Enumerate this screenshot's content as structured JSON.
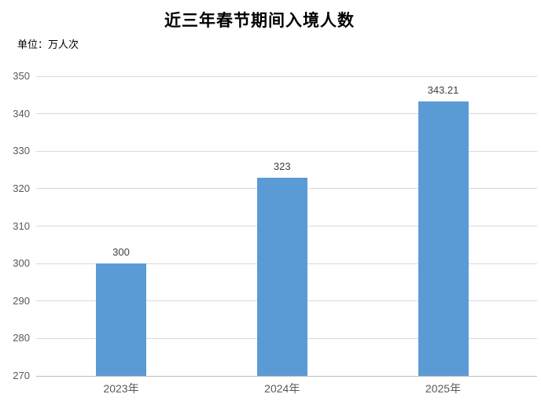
{
  "page": {
    "title": "近三年春节期间入境人数",
    "unit_label": "单位：万人次"
  },
  "chart_data": {
    "type": "bar",
    "title": "近三年春节期间入境人数",
    "unit_label": "单位：万人次",
    "categories": [
      "2023年",
      "2024年",
      "2025年"
    ],
    "values": [
      300,
      323,
      343.21
    ],
    "data_labels": [
      "300",
      "323",
      "343.21"
    ],
    "xlabel": "",
    "ylabel": "",
    "ylim": [
      270,
      350
    ],
    "yticks": [
      270,
      280,
      290,
      300,
      310,
      320,
      330,
      340,
      350
    ],
    "grid": true,
    "legend_position": "none",
    "bar_color": "#5b9bd5",
    "gridline_color": "#d9d9d9",
    "axis_line_color": "#bfbfbf",
    "tick_label_color": "#595959",
    "data_label_color": "#404040",
    "title_color": "#000000"
  }
}
